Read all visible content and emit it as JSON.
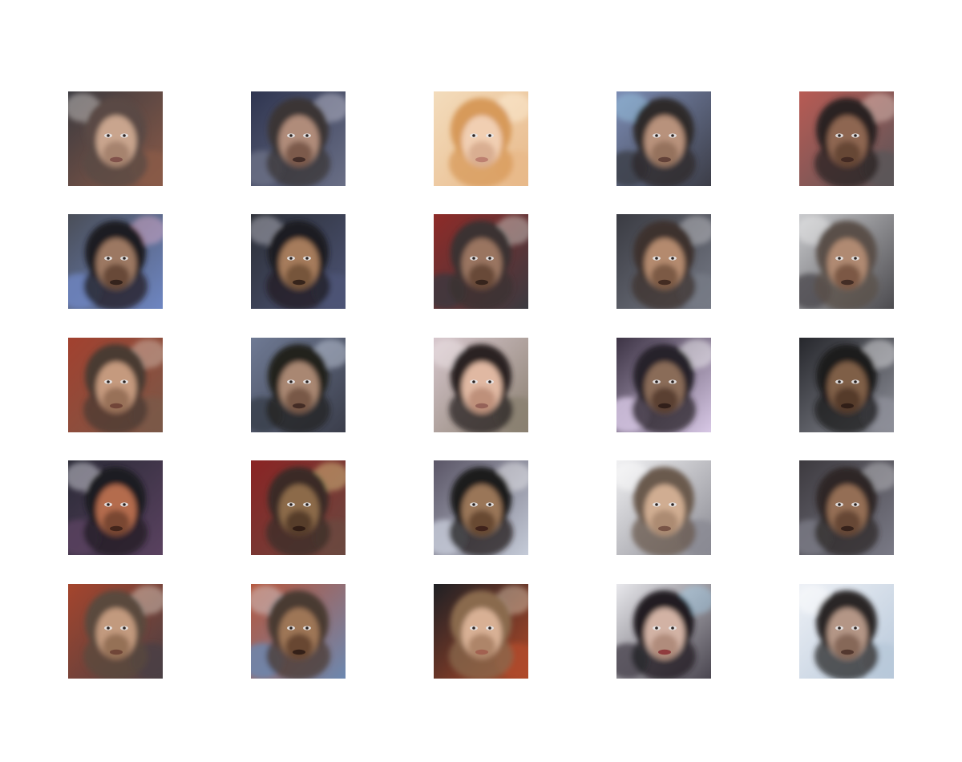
{
  "figure": {
    "rows": 5,
    "cols": 5,
    "tiles": [
      {
        "bg": "#3b3a3f",
        "bg2": "#8a5a48",
        "hair": "#5a4a44",
        "skin": "#c9a58e",
        "shade": "#9e7a66",
        "lips": "#7a4a45",
        "accent": "#d8d2d0"
      },
      {
        "bg": "#2f3550",
        "bg2": "#6a6f86",
        "hair": "#3a3436",
        "skin": "#b08c7a",
        "shade": "#6e4e40",
        "lips": "#3a2622",
        "accent": "#c8c8d6"
      },
      {
        "bg": "#f3dcbc",
        "bg2": "#e8b98a",
        "hair": "#d79a5a",
        "skin": "#f1cfb2",
        "shade": "#d3a588",
        "lips": "#b7786a",
        "accent": "#fff1dc"
      },
      {
        "bg": "#7b8bb3",
        "bg2": "#3c3d47",
        "hair": "#2e2a2a",
        "skin": "#b8927b",
        "shade": "#8c6a56",
        "lips": "#5b3a32",
        "accent": "#9ccbe6"
      },
      {
        "bg": "#b85b54",
        "bg2": "#5b5558",
        "hair": "#2a2322",
        "skin": "#8e6651",
        "shade": "#5d3f30",
        "lips": "#3d2620",
        "accent": "#e4c9c2"
      },
      {
        "bg": "#4a4e58",
        "bg2": "#6e86c2",
        "hair": "#1f1d20",
        "skin": "#9c7862",
        "shade": "#5a3d2e",
        "lips": "#2c1c18",
        "accent": "#e7b3d1"
      },
      {
        "bg": "#2c2f36",
        "bg2": "#4d5476",
        "hair": "#1f1d22",
        "skin": "#a67c5c",
        "shade": "#6a4a33",
        "lips": "#2c1c16",
        "accent": "#c5c5d0"
      },
      {
        "bg": "#8e2b28",
        "bg2": "#3b3a40",
        "hair": "#3a3230",
        "skin": "#9a7561",
        "shade": "#5b3d2f",
        "lips": "#2e1d18",
        "accent": "#d8d8d0"
      },
      {
        "bg": "#3a3b42",
        "bg2": "#767a86",
        "hair": "#3c332e",
        "skin": "#b48a6e",
        "shade": "#6e4d3a",
        "lips": "#3a241c",
        "accent": "#c9c9ce"
      },
      {
        "bg": "#c8c9cc",
        "bg2": "#4c4b4f",
        "hair": "#5a4f48",
        "skin": "#b08a72",
        "shade": "#6e4c3a",
        "lips": "#3a2620",
        "accent": "#eeeeee"
      },
      {
        "bg": "#a2412f",
        "bg2": "#7a5848",
        "hair": "#4a3a30",
        "skin": "#c59a7e",
        "shade": "#8c6650",
        "lips": "#6a3d33",
        "accent": "#d8c6b6"
      },
      {
        "bg": "#6f7a94",
        "bg2": "#3a3d4a",
        "hair": "#23201f",
        "skin": "#a98772",
        "shade": "#6b4c3c",
        "lips": "#3a2520",
        "accent": "#cfd6e6"
      },
      {
        "bg": "#d6c6cc",
        "bg2": "#8a7f70",
        "hair": "#2a2422",
        "skin": "#e0b8a2",
        "shade": "#b58670",
        "lips": "#8e5a52",
        "accent": "#f1e8ea"
      },
      {
        "bg": "#3c3344",
        "bg2": "#d8c8e6",
        "hair": "#28222a",
        "skin": "#8a6c58",
        "shade": "#4d3428",
        "lips": "#2a1a16",
        "accent": "#ffffff"
      },
      {
        "bg": "#26272c",
        "bg2": "#8d8f98",
        "hair": "#1c1a1d",
        "skin": "#7f5e46",
        "shade": "#4a3124",
        "lips": "#2a1a14",
        "accent": "#f0f0f2"
      },
      {
        "bg": "#2a2a36",
        "bg2": "#5a4260",
        "hair": "#1f1c22",
        "skin": "#b46c4e",
        "shade": "#6a3e2c",
        "lips": "#3a2018",
        "accent": "#e9e9f2"
      },
      {
        "bg": "#8a2424",
        "bg2": "#6a4840",
        "hair": "#3a2c26",
        "skin": "#8c6a4a",
        "shade": "#4a3222",
        "lips": "#2a1812",
        "accent": "#e2d08a"
      },
      {
        "bg": "#5a5566",
        "bg2": "#c5cbd8",
        "hair": "#1f1b1e",
        "skin": "#9a7658",
        "shade": "#5a3d2a",
        "lips": "#3a1c18",
        "accent": "#f1f1f4"
      },
      {
        "bg": "#f0f0f2",
        "bg2": "#8a8a92",
        "hair": "#6a5a4e",
        "skin": "#d0ad92",
        "shade": "#a2826a",
        "lips": "#6e4a3e",
        "accent": "#ffffff"
      },
      {
        "bg": "#3d3a3f",
        "bg2": "#7a7a86",
        "hair": "#2e2826",
        "skin": "#946e55",
        "shade": "#5a3d2c",
        "lips": "#2e1c16",
        "accent": "#c8c8cc"
      },
      {
        "bg": "#a5452d",
        "bg2": "#4a4044",
        "hair": "#5a4a3e",
        "skin": "#c29a7e",
        "shade": "#8a664e",
        "lips": "#6a3e33",
        "accent": "#dfd8ca"
      },
      {
        "bg": "#b5563c",
        "bg2": "#6c88b0",
        "hair": "#4a3a30",
        "skin": "#9e7656",
        "shade": "#5a3b28",
        "lips": "#2c1a14",
        "accent": "#d6d6da"
      },
      {
        "bg": "#1f2024",
        "bg2": "#b04a2a",
        "hair": "#8a6a4e",
        "skin": "#d8b094",
        "shade": "#a47a5e",
        "lips": "#a05a4c",
        "accent": "#e2d0b8"
      },
      {
        "bg": "#e8e8ec",
        "bg2": "#4a4650",
        "hair": "#221e20",
        "skin": "#d2b2a4",
        "shade": "#a88272",
        "lips": "#8a2e34",
        "accent": "#a6d0ea"
      },
      {
        "bg": "#eef1f6",
        "bg2": "#b8c8da",
        "hair": "#2a2526",
        "skin": "#b49686",
        "shade": "#7a5c4e",
        "lips": "#4a3028",
        "accent": "#ffffff"
      }
    ]
  }
}
